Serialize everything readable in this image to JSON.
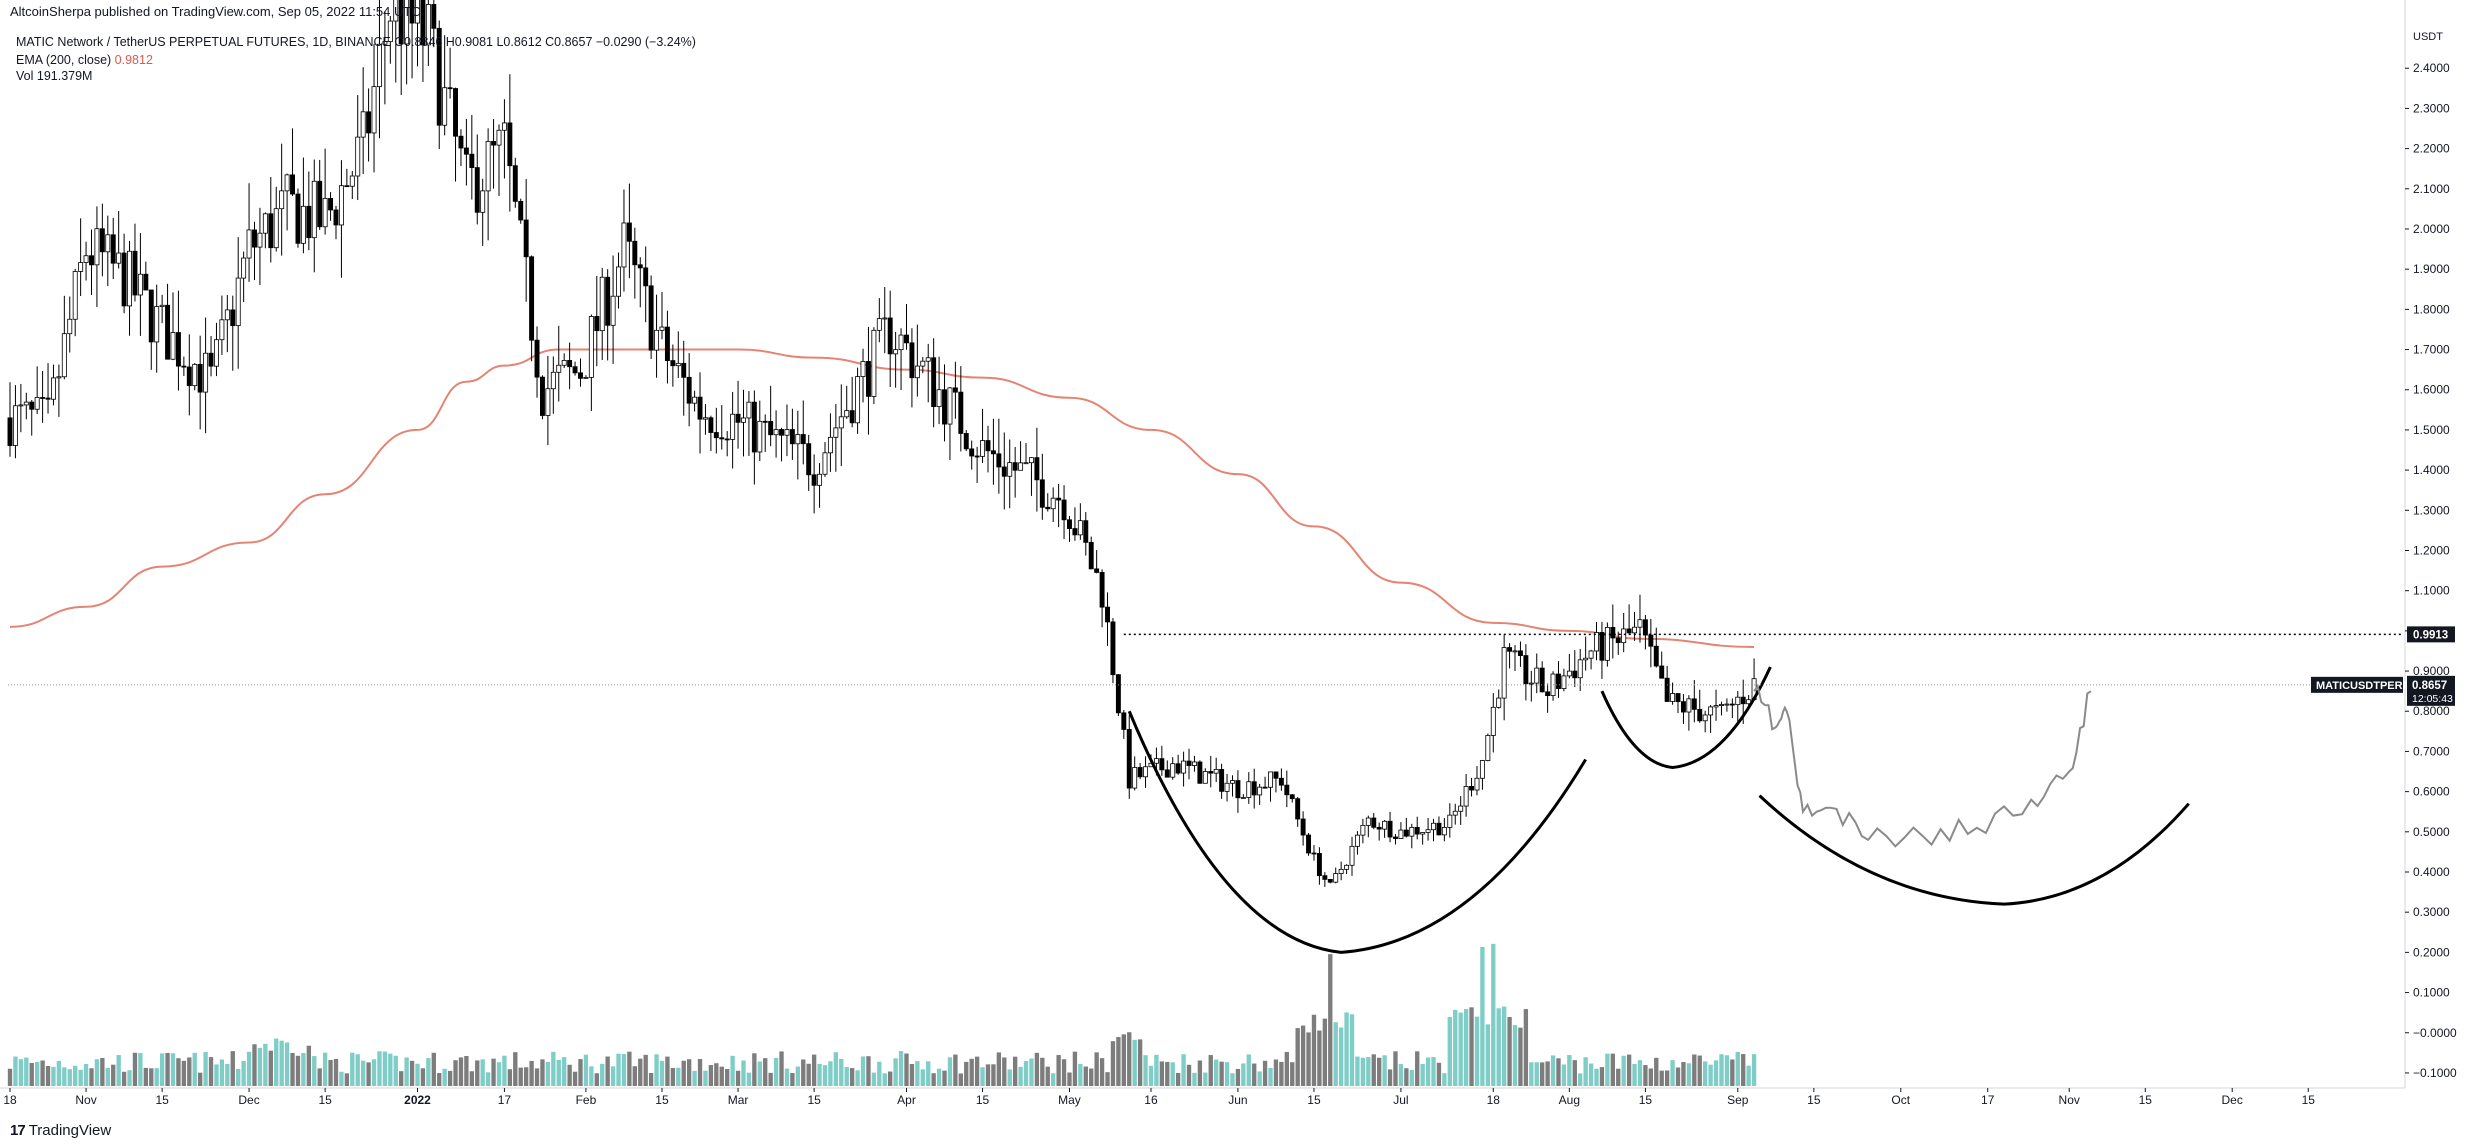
{
  "header": {
    "published": "AltcoinSherpa published on TradingView.com, Sep 05, 2022 11:54 UTC",
    "symbol_line": "MATIC Network / TetherUS PERPETUAL FUTURES, 1D, BINANCE  O0.8846  H0.9081  L0.8612  C0.8657  −0.0290 (−3.24%)",
    "ema_label": "EMA (200, close)",
    "ema_value": "0.9812",
    "vol_label": "Vol",
    "vol_value": "191.379M"
  },
  "footer": {
    "logo_text": "17",
    "brand": "TradingView",
    "logo_icon": "tradingview-logo-icon"
  },
  "colors": {
    "up_candle": "#000000",
    "down_candle": "#000000",
    "ema": "#e58472",
    "volume_up": "#7ecdc6",
    "volume_down": "#7d7d7d",
    "price_tag_bg": "#131722",
    "grid": "none"
  },
  "chart_data": {
    "type": "candlestick",
    "timeframe": "1D",
    "exchange": "BINANCE",
    "symbol": "MATICUSDTPERP",
    "currency_label": "USDT",
    "y_axis": {
      "side": "right",
      "ticks": [
        "2.4000",
        "2.3000",
        "2.2000",
        "2.1000",
        "2.0000",
        "1.9000",
        "1.8000",
        "1.7000",
        "1.6000",
        "1.5000",
        "1.4000",
        "1.3000",
        "1.2000",
        "1.1000",
        "1.0000",
        "0.9000",
        "0.8000",
        "0.7000",
        "0.6000",
        "0.5000",
        "0.4000",
        "0.3000",
        "0.2000",
        "0.1000",
        "−0.0000",
        "−0.1000"
      ],
      "ylim": [
        -0.13,
        2.52
      ]
    },
    "x_axis": {
      "ticks": [
        "18",
        "Nov",
        "15",
        "Dec",
        "15",
        "2022",
        "17",
        "Feb",
        "15",
        "Mar",
        "15",
        "Apr",
        "15",
        "May",
        "16",
        "Jun",
        "15",
        "Jul",
        "18",
        "Aug",
        "15",
        "Sep",
        "15",
        "Oct",
        "17",
        "Nov",
        "15",
        "Dec",
        "15"
      ],
      "bold_ticks": [
        "2022"
      ],
      "start": "2021-10-18",
      "end": "2022-12-19"
    },
    "last_price": {
      "value": "0.8657",
      "label": "MATICUSDTPERP",
      "countdown": "12:05:43"
    },
    "marked_level": {
      "value": "0.9913"
    },
    "ema": {
      "name": "EMA (200, close)",
      "points": [
        [
          "2021-10-18",
          1.01
        ],
        [
          "2021-11-01",
          1.06
        ],
        [
          "2021-11-15",
          1.16
        ],
        [
          "2021-12-01",
          1.22
        ],
        [
          "2021-12-15",
          1.34
        ],
        [
          "2022-01-01",
          1.5
        ],
        [
          "2022-01-10",
          1.62
        ],
        [
          "2022-01-17",
          1.66
        ],
        [
          "2022-01-27",
          1.7
        ],
        [
          "2022-02-15",
          1.7
        ],
        [
          "2022-03-01",
          1.7
        ],
        [
          "2022-03-15",
          1.68
        ],
        [
          "2022-04-01",
          1.65
        ],
        [
          "2022-04-15",
          1.63
        ],
        [
          "2022-05-01",
          1.58
        ],
        [
          "2022-05-16",
          1.5
        ],
        [
          "2022-06-01",
          1.39
        ],
        [
          "2022-06-15",
          1.26
        ],
        [
          "2022-07-01",
          1.12
        ],
        [
          "2022-07-18",
          1.02
        ],
        [
          "2022-08-01",
          1.0
        ],
        [
          "2022-08-15",
          0.98
        ],
        [
          "2022-09-04",
          0.96
        ]
      ]
    },
    "price_path_anchors": [
      [
        "2021-10-18",
        1.53
      ],
      [
        "2021-10-25",
        1.52
      ],
      [
        "2021-11-01",
        1.95
      ],
      [
        "2021-11-08",
        1.88
      ],
      [
        "2021-11-15",
        1.75
      ],
      [
        "2021-11-24",
        1.62
      ],
      [
        "2021-12-01",
        1.95
      ],
      [
        "2021-12-08",
        2.05
      ],
      [
        "2021-12-15",
        2.02
      ],
      [
        "2021-12-22",
        2.2
      ],
      [
        "2021-12-27",
        2.55
      ],
      [
        "2022-01-03",
        2.47
      ],
      [
        "2022-01-10",
        2.1
      ],
      [
        "2022-01-17",
        2.2
      ],
      [
        "2022-01-24",
        1.6
      ],
      [
        "2022-01-31",
        1.65
      ],
      [
        "2022-02-08",
        1.95
      ],
      [
        "2022-02-15",
        1.7
      ],
      [
        "2022-02-22",
        1.55
      ],
      [
        "2022-03-01",
        1.52
      ],
      [
        "2022-03-15",
        1.42
      ],
      [
        "2022-03-29",
        1.75
      ],
      [
        "2022-04-05",
        1.63
      ],
      [
        "2022-04-15",
        1.45
      ],
      [
        "2022-04-30",
        1.33
      ],
      [
        "2022-05-07",
        1.1
      ],
      [
        "2022-05-12",
        0.63
      ],
      [
        "2022-05-20",
        0.67
      ],
      [
        "2022-06-01",
        0.61
      ],
      [
        "2022-06-09",
        0.63
      ],
      [
        "2022-06-15",
        0.43
      ],
      [
        "2022-06-18",
        0.36
      ],
      [
        "2022-06-25",
        0.53
      ],
      [
        "2022-07-01",
        0.5
      ],
      [
        "2022-07-10",
        0.52
      ],
      [
        "2022-07-16",
        0.68
      ],
      [
        "2022-07-20",
        0.93
      ],
      [
        "2022-07-28",
        0.85
      ],
      [
        "2022-08-05",
        0.95
      ],
      [
        "2022-08-14",
        1.0
      ],
      [
        "2022-08-19",
        0.82
      ],
      [
        "2022-08-29",
        0.79
      ],
      [
        "2022-09-04",
        0.866
      ]
    ],
    "volume_pattern": "Volume bars along the bottom; largest spikes mid-June and mid-July 2022",
    "drawings": [
      {
        "type": "arc",
        "from": [
          "2022-05-12",
          0.8
        ],
        "bottom": [
          "2022-06-20",
          0.2
        ],
        "to": [
          "2022-08-04",
          0.68
        ]
      },
      {
        "type": "arc",
        "from": [
          "2022-08-07",
          0.85
        ],
        "bottom": [
          "2022-08-20",
          0.66
        ],
        "to": [
          "2022-09-07",
          0.91
        ]
      },
      {
        "type": "arc",
        "from": [
          "2022-09-05",
          0.59
        ],
        "bottom": [
          "2022-10-20",
          0.32
        ],
        "to": [
          "2022-11-23",
          0.57
        ]
      },
      {
        "type": "hline",
        "value": 0.9913,
        "style": "dotted",
        "from": "2022-05-11"
      },
      {
        "type": "projection_path",
        "points": [
          [
            "2022-09-04",
            0.85
          ],
          [
            "2022-09-08",
            0.76
          ],
          [
            "2022-09-10",
            0.8
          ],
          [
            "2022-09-13",
            0.55
          ],
          [
            "2022-09-18",
            0.56
          ],
          [
            "2022-09-25",
            0.48
          ],
          [
            "2022-10-05",
            0.49
          ],
          [
            "2022-10-15",
            0.51
          ],
          [
            "2022-10-25",
            0.58
          ],
          [
            "2022-11-01",
            0.65
          ],
          [
            "2022-11-05",
            0.85
          ]
        ]
      }
    ]
  }
}
